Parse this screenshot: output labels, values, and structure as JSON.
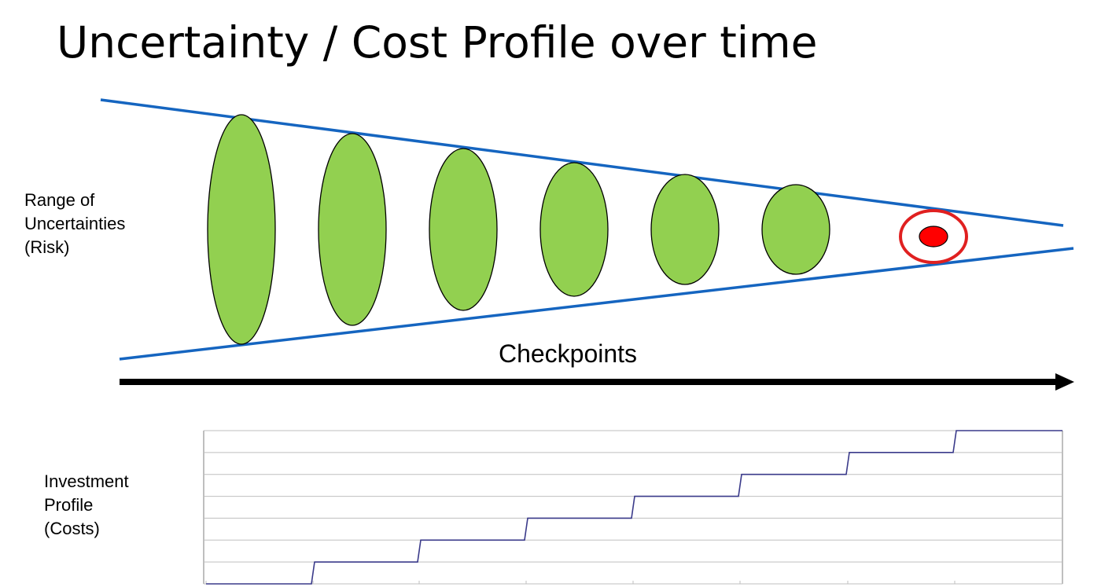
{
  "title": "Uncertainty / Cost Profile over time",
  "uncertainty_label": {
    "lines": [
      "Range of",
      "Uncertainties",
      "(Risk)"
    ]
  },
  "timeline": {
    "label": "Checkpoints"
  },
  "investment_label": {
    "lines": [
      "Investment",
      "Profile",
      "(Costs)"
    ]
  },
  "colors": {
    "cone_lines": "#1565c0",
    "ellipse_fill": "#92d050",
    "ellipse_stroke": "#000000",
    "target_dot": "#ff0000",
    "target_ring": "#e02020",
    "arrow": "#000000",
    "step_line": "#3a3a8a",
    "grid": "#bfbfbf"
  },
  "uncertainty_stages": 6,
  "investment_steps": {
    "levels": [
      0,
      1,
      2,
      3,
      4,
      5,
      6,
      7
    ],
    "max_level": 7
  }
}
